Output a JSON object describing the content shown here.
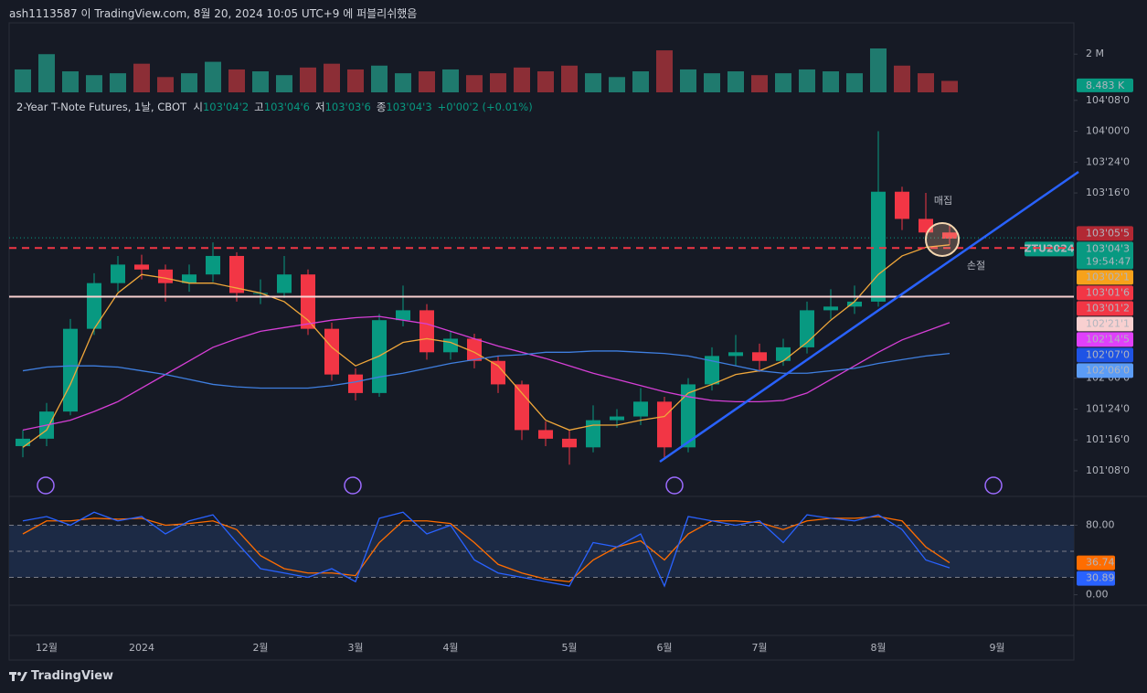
{
  "header": {
    "title": "ash1113587 이 TradingView.com, 8월 20, 2024 10:05 UTC+9 에 퍼블리쉬했음"
  },
  "legend": {
    "symbol": "2-Year T-Note Futures, 1날, CBOT",
    "items": [
      {
        "label": "시",
        "value": "103'04'2"
      },
      {
        "label": "고",
        "value": "103'04'6"
      },
      {
        "label": "저",
        "value": "103'03'6"
      },
      {
        "label": "종",
        "value": "103'04'3"
      }
    ],
    "change": "+0'00'2 (+0.01%)"
  },
  "footer": {
    "brand": "TradingView"
  },
  "chart_data": [
    {
      "type": "candlestick",
      "up_color": "#089981",
      "down_color": "#f23645",
      "categories": [
        null,
        "12월",
        null,
        null,
        null,
        "2024",
        null,
        null,
        null,
        null,
        "2월",
        null,
        null,
        null,
        "3월",
        null,
        null,
        null,
        "4월",
        null,
        null,
        null,
        null,
        "5월",
        null,
        null,
        null,
        "6월",
        null,
        null,
        null,
        "7월",
        null,
        null,
        null,
        null,
        "8월",
        null,
        null,
        null,
        null,
        "9월",
        null,
        null
      ],
      "open": [
        101.45,
        101.51,
        101.73,
        102.4,
        102.77,
        102.92,
        102.88,
        102.77,
        102.84,
        102.99,
        102.69,
        102.69,
        102.84,
        102.4,
        102.03,
        101.88,
        102.47,
        102.55,
        102.21,
        102.32,
        102.14,
        101.95,
        101.58,
        101.51,
        101.44,
        101.66,
        101.69,
        101.81,
        101.44,
        101.95,
        102.18,
        102.21,
        102.14,
        102.25,
        102.55,
        102.58,
        102.62,
        103.51,
        103.29,
        103.18,
        null,
        null,
        null,
        null
      ],
      "high": [
        101.58,
        101.8,
        102.48,
        102.85,
        102.99,
        103.0,
        102.92,
        102.92,
        103.1,
        103.02,
        102.8,
        102.99,
        102.88,
        102.45,
        102.08,
        102.52,
        102.75,
        102.6,
        102.38,
        102.36,
        102.18,
        101.98,
        101.65,
        101.58,
        101.78,
        101.75,
        101.92,
        101.85,
        102.0,
        102.25,
        102.35,
        102.28,
        102.32,
        102.62,
        102.72,
        102.75,
        104.0,
        103.55,
        103.5,
        103.25,
        null,
        null,
        null,
        null
      ],
      "low": [
        101.36,
        101.45,
        101.7,
        102.35,
        102.7,
        102.8,
        102.62,
        102.7,
        102.78,
        102.62,
        102.6,
        102.65,
        102.35,
        101.98,
        101.82,
        101.85,
        102.42,
        102.15,
        102.15,
        102.08,
        101.88,
        101.5,
        101.45,
        101.3,
        101.4,
        101.6,
        101.62,
        101.35,
        101.4,
        101.9,
        102.1,
        102.05,
        102.1,
        102.2,
        102.48,
        102.52,
        102.58,
        103.2,
        103.12,
        103.08,
        null,
        null,
        null,
        null
      ],
      "close": [
        101.51,
        101.73,
        102.4,
        102.77,
        102.92,
        102.88,
        102.77,
        102.84,
        102.99,
        102.69,
        102.69,
        102.84,
        102.4,
        102.03,
        101.88,
        102.47,
        102.55,
        102.21,
        102.32,
        102.14,
        101.95,
        101.58,
        101.51,
        101.44,
        101.66,
        101.69,
        101.81,
        101.44,
        101.95,
        102.18,
        102.21,
        102.14,
        102.25,
        102.55,
        102.58,
        102.62,
        103.51,
        103.29,
        103.18,
        103.13,
        null,
        null,
        null,
        null
      ],
      "lines": [
        {
          "color": "#f0a73a",
          "values": [
            101.44,
            101.58,
            101.95,
            102.4,
            102.69,
            102.84,
            102.81,
            102.77,
            102.77,
            102.73,
            102.69,
            102.62,
            102.47,
            102.25,
            102.1,
            102.18,
            102.29,
            102.32,
            102.29,
            102.21,
            102.1,
            101.88,
            101.66,
            101.58,
            101.62,
            101.62,
            101.66,
            101.69,
            101.88,
            101.95,
            102.03,
            102.06,
            102.14,
            102.29,
            102.47,
            102.62,
            102.84,
            102.99,
            103.06,
            103.08,
            null,
            null,
            null,
            null
          ]
        },
        {
          "color": "#d63fd6",
          "values": [
            101.58,
            101.62,
            101.66,
            101.73,
            101.81,
            101.92,
            102.03,
            102.14,
            102.25,
            102.32,
            102.38,
            102.41,
            102.44,
            102.47,
            102.49,
            102.5,
            102.47,
            102.44,
            102.38,
            102.32,
            102.26,
            102.21,
            102.16,
            102.1,
            102.04,
            101.99,
            101.94,
            101.89,
            101.85,
            101.82,
            101.81,
            101.81,
            101.82,
            101.88,
            101.99,
            102.1,
            102.21,
            102.31,
            102.38,
            102.45,
            null,
            null,
            null,
            null
          ]
        },
        {
          "color": "#3f7fe0",
          "values": [
            102.06,
            102.09,
            102.1,
            102.1,
            102.09,
            102.06,
            102.03,
            101.99,
            101.95,
            101.93,
            101.92,
            101.92,
            101.92,
            101.94,
            101.97,
            102.01,
            102.04,
            102.08,
            102.12,
            102.15,
            102.18,
            102.19,
            102.21,
            102.21,
            102.22,
            102.22,
            102.21,
            102.2,
            102.18,
            102.14,
            102.1,
            102.06,
            102.04,
            102.04,
            102.06,
            102.08,
            102.12,
            102.15,
            102.18,
            102.2,
            null,
            null,
            null,
            null
          ]
        }
      ],
      "ylim": [
        101.05,
        104.3
      ],
      "yticks": [
        {
          "value": 104.25,
          "label": "104'08'0"
        },
        {
          "value": 104.0,
          "label": "104'00'0"
        },
        {
          "value": 103.75,
          "label": "103'24'0"
        },
        {
          "value": 103.5,
          "label": "103'16'0"
        },
        {
          "value": 102.0,
          "label": "102'00'0"
        },
        {
          "value": 101.75,
          "label": "101'24'0"
        },
        {
          "value": 101.5,
          "label": "101'16'0"
        },
        {
          "value": 101.25,
          "label": "101'08'0"
        }
      ],
      "price_labels": [
        {
          "value": 103.171875,
          "label": "103'05'5",
          "color": "#b22833",
          "text_color": "#ffffff"
        },
        {
          "value": 103.13671875,
          "label": "103'04'3",
          "color": "#089981",
          "text_color": "#ffffff",
          "symbol": "ZTU2024",
          "countdown": "19:54:47",
          "line": "dotted"
        },
        {
          "value": 103.06640625,
          "label": "103'02'1",
          "color": "#f7a21b",
          "text_color": "#131722"
        },
        {
          "value": 103.0546875,
          "label": "103'01'6",
          "color": "#f23645",
          "text_color": "#ffffff",
          "line": "dashed"
        },
        {
          "value": 103.0390625,
          "label": "103'01'2",
          "color": "#f23645",
          "text_color": "#ffffff"
        },
        {
          "value": 102.66015625,
          "label": "102'21'1",
          "color": "#f8d0d0",
          "text_color": "#131722",
          "line": "solid"
        },
        {
          "value": 102.453125,
          "label": "102'14'5",
          "color": "#e040fb",
          "text_color": "#ffffff"
        },
        {
          "value": 102.21875,
          "label": "102'07'0",
          "color": "#1e53e5",
          "text_color": "#ffffff"
        },
        {
          "value": 102.1875,
          "label": "102'06'0",
          "color": "#5b9cf6",
          "text_color": "#131722"
        }
      ],
      "annotations": [
        {
          "text": "매집",
          "color": "#f5c6cf"
        },
        {
          "text": "손절",
          "color": "#f23645"
        }
      ]
    },
    {
      "type": "bar",
      "up_color": "#1f7a6e",
      "down_color": "#8c2e36",
      "values": [
        1200000,
        2000000,
        1100000,
        900000,
        1000000,
        1500000,
        800000,
        1000000,
        1600000,
        1200000,
        1100000,
        900000,
        1300000,
        1500000,
        1200000,
        1400000,
        1000000,
        1100000,
        1200000,
        900000,
        1000000,
        1300000,
        1100000,
        1400000,
        1000000,
        800000,
        1100000,
        2200000,
        1200000,
        1000000,
        1100000,
        900000,
        1000000,
        1200000,
        1100000,
        1000000,
        2300000,
        1400000,
        1000000,
        600000,
        null,
        null,
        null,
        null
      ],
      "ylim": [
        0,
        3400000
      ],
      "yticks": [
        {
          "value": 2000000,
          "label": "2 M"
        }
      ],
      "last_label": {
        "value": 8483,
        "label": "8.483 K",
        "color": "#089981"
      }
    },
    {
      "type": "line",
      "ylim": [
        -10,
        110
      ],
      "yticks": [
        {
          "value": 80,
          "label": "80.00"
        },
        {
          "value": 0,
          "label": "0.00"
        }
      ],
      "levels": [
        80,
        50,
        20
      ],
      "band_color": "#1c2a45",
      "series": [
        {
          "color": "#2962ff",
          "values": [
            85,
            90,
            80,
            95,
            85,
            90,
            70,
            85,
            92,
            60,
            30,
            25,
            20,
            30,
            15,
            88,
            95,
            70,
            80,
            40,
            25,
            20,
            15,
            10,
            60,
            55,
            70,
            10,
            90,
            85,
            80,
            85,
            60,
            92,
            88,
            85,
            92,
            75,
            40,
            30.89,
            null,
            null,
            null,
            null
          ]
        },
        {
          "color": "#ff6d00",
          "values": [
            70,
            85,
            85,
            88,
            87,
            88,
            80,
            82,
            85,
            75,
            45,
            30,
            25,
            25,
            22,
            60,
            85,
            85,
            82,
            60,
            35,
            25,
            18,
            15,
            40,
            55,
            62,
            40,
            70,
            85,
            85,
            83,
            75,
            85,
            88,
            88,
            90,
            85,
            55,
            36.74,
            null,
            null,
            null,
            null
          ]
        }
      ]
    }
  ]
}
